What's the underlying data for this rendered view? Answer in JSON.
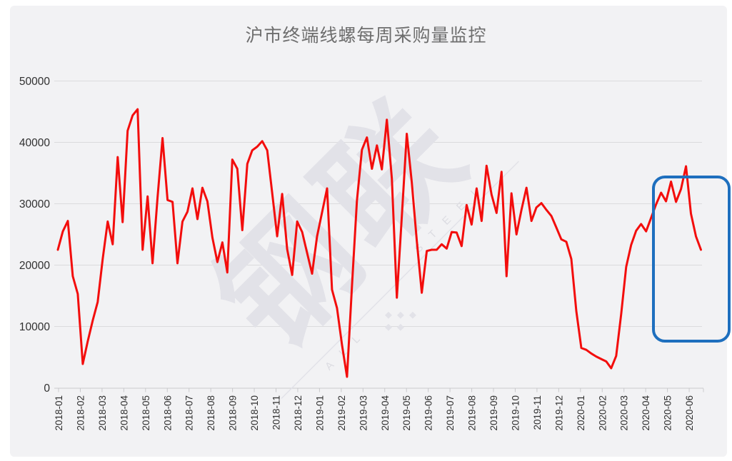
{
  "chart_data": {
    "type": "line",
    "title": "沪市终端线螺每周采购量监控",
    "xlabel": "",
    "ylabel": "",
    "ylim": [
      0,
      50000
    ],
    "grid": true,
    "legend": "none",
    "y_ticks": [
      0,
      10000,
      20000,
      30000,
      40000,
      50000
    ],
    "x_labels": [
      "2018-01",
      "2018-02",
      "2018-03",
      "2018-04",
      "2018-05",
      "2018-06",
      "2018-07",
      "2018-08",
      "2018-09",
      "2018-10",
      "2018-11",
      "2018-12",
      "2019-01",
      "2019-02",
      "2019-03",
      "2019-04",
      "2019-05",
      "2019-06",
      "2019-07",
      "2019-08",
      "2019-09",
      "2019-10",
      "2019-11",
      "2019-12",
      "2020-01",
      "2020-02",
      "2020-03",
      "2020-04",
      "2020-05",
      "2020-06"
    ],
    "x_unit": "week",
    "values": [
      22500,
      25500,
      27200,
      18200,
      15300,
      3900,
      7600,
      11000,
      14000,
      21000,
      27100,
      23400,
      37600,
      27000,
      41900,
      44400,
      45400,
      22500,
      31200,
      20300,
      31000,
      40700,
      30600,
      30300,
      20300,
      27100,
      28700,
      32500,
      27500,
      32600,
      30400,
      24500,
      20500,
      23700,
      18800,
      37200,
      35700,
      25700,
      36500,
      38700,
      39300,
      40200,
      38700,
      31700,
      24700,
      31600,
      22600,
      18400,
      27100,
      25400,
      22000,
      18600,
      24700,
      28600,
      32500,
      16000,
      13000,
      7000,
      1800,
      16700,
      30500,
      38800,
      40800,
      35700,
      39500,
      35600,
      43700,
      34100,
      14700,
      28000,
      41400,
      33500,
      24000,
      15500,
      22300,
      22500,
      22500,
      23400,
      22700,
      25400,
      25300,
      23100,
      29800,
      26600,
      32500,
      27200,
      36200,
      31500,
      28500,
      35200,
      18200,
      31700,
      25000,
      29000,
      32600,
      27200,
      29400,
      30100,
      29000,
      28000,
      26100,
      24200,
      23800,
      21000,
      12500,
      6500,
      6200,
      5600,
      5100,
      4700,
      4300,
      3200,
      5200,
      12000,
      19700,
      23300,
      25600,
      26700,
      25500,
      27700,
      29900,
      31800,
      30400,
      33600,
      30300,
      32400,
      36100,
      28400,
      24700,
      22500
    ],
    "colors": {
      "line": "#f30d0c",
      "grid": "#dbdbdd",
      "axis": "#c9c9cc",
      "tick_label": "#303030",
      "title": "#6e6e6e",
      "panel_background": "#f2f2f4",
      "page_background": "#ffffff",
      "highlight_box": "#1e6fbe",
      "watermark": "#e2e2e8"
    },
    "highlight_box": {
      "from_label": "2020-05",
      "to_label": "2020-06",
      "color": "#1e6fbe"
    },
    "watermark": {
      "logo_text": "钢联",
      "diagonal_text_left": "ALL",
      "diagonal_text_right": "STEEL"
    }
  }
}
